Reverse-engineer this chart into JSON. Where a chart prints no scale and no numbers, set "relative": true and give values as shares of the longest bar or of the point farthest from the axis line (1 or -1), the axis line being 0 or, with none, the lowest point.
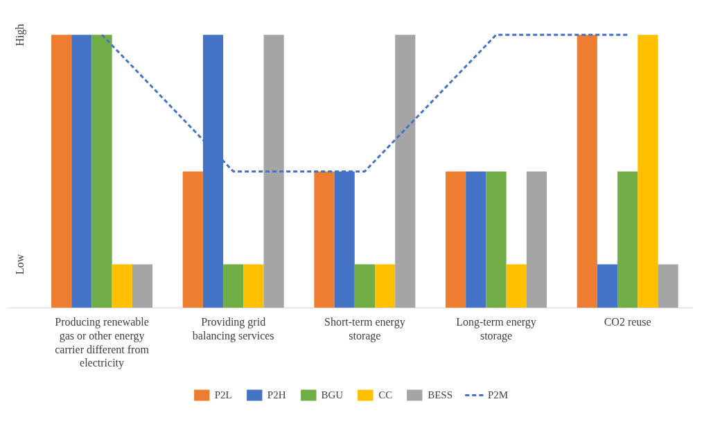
{
  "chart_data": {
    "type": "bar",
    "categories": [
      "Producing renewable gas or other energy carrier different from electricity",
      "Providing grid balancing services",
      "Short-term energy storage",
      "Long-term energy storage",
      "CO2 reuse"
    ],
    "relative": true,
    "grid": false,
    "legend": "bottom",
    "annotations": [
      "Low",
      "High"
    ],
    "series": [
      {
        "name": "P2L",
        "color": "#ed7d31",
        "values": [
          1,
          0.5,
          0.5,
          0.5,
          1
        ]
      },
      {
        "name": "P2H",
        "color": "#4472c4",
        "values": [
          1,
          1,
          0.5,
          0.5,
          0.16
        ]
      },
      {
        "name": "BGU",
        "color": "#70ad47",
        "values": [
          1,
          0.16,
          0.16,
          0.5,
          0.5
        ]
      },
      {
        "name": "CC",
        "color": "#ffc000",
        "values": [
          0.16,
          0.16,
          0.16,
          0.16,
          1
        ]
      },
      {
        "name": "BESS",
        "color": "#a5a5a5",
        "values": [
          0.16,
          1,
          1,
          0.5,
          0.16
        ]
      },
      {
        "name": "P2M",
        "color": "#4472c4",
        "type": "line",
        "line_style": "dashed",
        "marker": "none",
        "values": [
          1,
          0.5,
          0.5,
          1,
          1
        ]
      }
    ]
  }
}
